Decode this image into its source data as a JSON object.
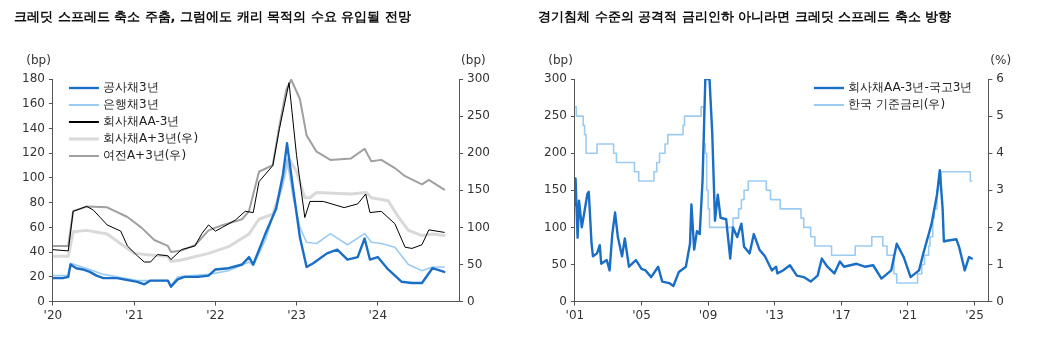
{
  "chart_data": [
    {
      "type": "line",
      "title": "크레딧 스프레드 축소 주춤, 그럼에도 캐리 목적의 수요 유입될 전망",
      "ylabel": "(bp)",
      "y2label": "(bp)",
      "legend": "top left",
      "marker": "none",
      "xlim": [
        "2020-01-01",
        "2025-01-01"
      ],
      "xticks": [
        {
          "value": "2020-01-01",
          "label": "'20"
        },
        {
          "value": "2021-01-01",
          "label": "'21"
        },
        {
          "value": "2022-01-01",
          "label": "'22"
        },
        {
          "value": "2023-01-01",
          "label": "'23"
        },
        {
          "value": "2024-01-01",
          "label": "'24"
        }
      ],
      "ylim": [
        0,
        180
      ],
      "yticks": [
        0,
        20,
        40,
        60,
        80,
        100,
        120,
        140,
        160,
        180
      ],
      "y2lim": [
        0,
        300
      ],
      "y2ticks": [
        0,
        50,
        100,
        150,
        200,
        250,
        300
      ],
      "series": [
        {
          "name": "회사채A+3년(우)",
          "color": "#d9d9d9",
          "axis": "y2",
          "x": [
            "2020-01-01",
            "2020-03-10",
            "2020-04-01",
            "2020-06-01",
            "2020-09-01",
            "2020-11-01",
            "2021-01-01",
            "2021-03-01",
            "2021-06-01",
            "2021-06-15",
            "2021-08-01",
            "2021-12-01",
            "2022-03-01",
            "2022-06-01",
            "2022-07-16",
            "2022-09-16",
            "2022-10-16",
            "2022-11-28",
            "2023-01-01",
            "2023-02-07",
            "2023-03-02",
            "2023-04-01",
            "2023-09-03",
            "2023-11-11",
            "2023-12-03",
            "2024-02-17",
            "2024-04-03",
            "2024-05-18",
            "2024-07-18",
            "2024-09-03",
            "2024-10-26"
          ],
          "values": [
            61,
            61,
            94,
            96,
            91,
            78,
            65,
            63,
            61,
            54,
            56,
            65,
            74,
            91,
            111,
            118,
            144,
            193,
            175,
            140,
            140,
            147,
            145,
            147,
            140,
            136,
            114,
            96,
            89,
            91,
            89
          ]
        },
        {
          "name": "여전A+3년(우)",
          "color": "#a0a0a0",
          "axis": "y2",
          "x": [
            "2020-01-01",
            "2020-03-10",
            "2020-04-01",
            "2020-06-01",
            "2020-09-01",
            "2020-12-01",
            "2021-02-01",
            "2021-04-01",
            "2021-06-01",
            "2021-06-15",
            "2021-08-01",
            "2021-10-01",
            "2021-12-01",
            "2022-02-01",
            "2022-05-01",
            "2022-06-01",
            "2022-07-16",
            "2022-09-16",
            "2022-10-16",
            "2022-11-16",
            "2022-12-08",
            "2023-01-16",
            "2023-02-15",
            "2023-04-01",
            "2023-06-02",
            "2023-09-03",
            "2023-11-03",
            "2023-12-03",
            "2024-01-17",
            "2024-03-18",
            "2024-05-03",
            "2024-07-18",
            "2024-08-18",
            "2024-10-26"
          ],
          "values": [
            75,
            75,
            122,
            128,
            127,
            114,
            100,
            83,
            75,
            67,
            69,
            76,
            96,
            103,
            111,
            122,
            175,
            184,
            237,
            286,
            299,
            273,
            224,
            202,
            191,
            193,
            206,
            189,
            191,
            180,
            169,
            158,
            164,
            151
          ]
        },
        {
          "name": "회사채AA-3년",
          "color": "#000000",
          "x": [
            "2020-01-01",
            "2020-03-10",
            "2020-04-01",
            "2020-06-01",
            "2020-07-01",
            "2020-08-01",
            "2020-09-01",
            "2020-11-01",
            "2020-12-01",
            "2021-01-15",
            "2021-02-15",
            "2021-03-15",
            "2021-04-15",
            "2021-06-01",
            "2021-06-15",
            "2021-08-01",
            "2021-10-01",
            "2021-11-01",
            "2021-12-01",
            "2022-01-01",
            "2022-02-01",
            "2022-04-01",
            "2022-05-15",
            "2022-06-20",
            "2022-07-16",
            "2022-09-16",
            "2022-10-16",
            "2022-11-28",
            "2023-01-01",
            "2023-02-07",
            "2023-03-02",
            "2023-05-01",
            "2023-08-03",
            "2023-10-03",
            "2023-11-08",
            "2023-11-27",
            "2024-01-17",
            "2024-03-18",
            "2024-05-03",
            "2024-06-03",
            "2024-07-18",
            "2024-08-18",
            "2024-10-26"
          ],
          "values": [
            42,
            41,
            73,
            77,
            74,
            68,
            62,
            57,
            45,
            37,
            32,
            32,
            38,
            37,
            34,
            42,
            45,
            55,
            62,
            57,
            60,
            66,
            73,
            72,
            97,
            110,
            140,
            177,
            118,
            68,
            81,
            81,
            76,
            79,
            87,
            72,
            73,
            63,
            44,
            43,
            46,
            58,
            56
          ]
        },
        {
          "name": "은행채3년",
          "color": "#9ccbf2",
          "x": [
            "2020-01-01",
            "2020-03-10",
            "2020-03-20",
            "2020-06-15",
            "2020-08-15",
            "2021-01-15",
            "2021-06-01",
            "2021-06-15",
            "2021-07-15",
            "2021-12-01",
            "2022-03-01",
            "2022-06-01",
            "2022-06-20",
            "2022-08-14",
            "2022-11-01",
            "2022-11-19",
            "2022-12-16",
            "2023-01-16",
            "2023-02-15",
            "2023-04-01",
            "2023-06-02",
            "2023-08-18",
            "2023-11-03",
            "2023-12-03",
            "2024-01-17",
            "2024-03-18",
            "2024-05-18",
            "2024-07-18",
            "2024-09-03",
            "2024-10-26"
          ],
          "values": [
            21,
            21,
            31,
            26,
            22,
            17,
            17,
            13,
            20,
            22,
            25,
            32,
            29,
            50,
            95,
            115,
            85,
            60,
            48,
            47,
            55,
            46,
            55,
            48,
            47,
            44,
            30,
            25,
            28,
            28
          ]
        },
        {
          "name": "공사채3년",
          "color": "#1a6ec6",
          "x": [
            "2020-01-01",
            "2020-02-15",
            "2020-03-10",
            "2020-03-20",
            "2020-04-15",
            "2020-05-15",
            "2020-06-15",
            "2020-07-15",
            "2020-08-15",
            "2020-10-15",
            "2020-12-15",
            "2021-01-15",
            "2021-02-15",
            "2021-03-15",
            "2021-06-01",
            "2021-06-15",
            "2021-07-15",
            "2021-08-15",
            "2021-10-15",
            "2021-12-01",
            "2022-01-01",
            "2022-03-01",
            "2022-05-01",
            "2022-06-01",
            "2022-06-20",
            "2022-08-14",
            "2022-10-01",
            "2022-11-01",
            "2022-11-19",
            "2022-12-16",
            "2023-01-16",
            "2023-02-15",
            "2023-03-17",
            "2023-05-18",
            "2023-07-03",
            "2023-08-18",
            "2023-10-03",
            "2023-11-03",
            "2023-11-27",
            "2024-01-01",
            "2024-02-17",
            "2024-04-18",
            "2024-06-03",
            "2024-07-18",
            "2024-09-03",
            "2024-10-26"
          ],
          "values": [
            19,
            19,
            20,
            30,
            27,
            26,
            24,
            21,
            19,
            19,
            17,
            16,
            14,
            17,
            17,
            12,
            18,
            20,
            20,
            21,
            26,
            27,
            30,
            36,
            30,
            55,
            75,
            103,
            128,
            92,
            52,
            28,
            31,
            39,
            42,
            34,
            36,
            51,
            34,
            36,
            26,
            16,
            15,
            15,
            27,
            24
          ]
        }
      ]
    },
    {
      "type": "line",
      "title": "경기침체 수준의 공격적 금리인하 아니라면 크레딧 스프레드 축소 방향",
      "ylabel": "(bp)",
      "y2label": "(%)",
      "legend": "top right",
      "marker": "none",
      "xlim": [
        "2001-01-01",
        "2025-11-01"
      ],
      "xticks": [
        {
          "value": "2001-01-01",
          "label": "'01"
        },
        {
          "value": "2005-01-01",
          "label": "'05"
        },
        {
          "value": "2009-01-01",
          "label": "'09"
        },
        {
          "value": "2013-01-01",
          "label": "'13"
        },
        {
          "value": "2017-01-01",
          "label": "'17"
        },
        {
          "value": "2021-01-01",
          "label": "'21"
        },
        {
          "value": "2025-01-01",
          "label": "'25"
        }
      ],
      "ylim": [
        0,
        300
      ],
      "yticks": [
        0,
        50,
        100,
        150,
        200,
        250,
        300
      ],
      "y2lim": [
        0,
        6
      ],
      "y2ticks": [
        0,
        1,
        2,
        3,
        4,
        5,
        6
      ],
      "series": [
        {
          "name": "한국 기준금리(우)",
          "color": "#9ccbf2",
          "type": "step",
          "axis": "y2",
          "x": [
            "2001-01",
            "2001-02",
            "2001-07",
            "2001-08",
            "2001-09",
            "2002-05",
            "2003-05",
            "2003-07",
            "2004-08",
            "2004-11",
            "2005-10",
            "2005-12",
            "2006-02",
            "2006-06",
            "2006-08",
            "2007-07",
            "2007-08",
            "2008-08",
            "2008-10",
            "2008-11",
            "2008-12",
            "2009-01",
            "2009-02",
            "2010-07",
            "2010-11",
            "2011-01",
            "2011-03",
            "2011-06",
            "2012-07",
            "2012-10",
            "2013-05",
            "2014-08",
            "2014-10",
            "2015-03",
            "2015-06",
            "2016-06",
            "2017-11",
            "2018-11",
            "2019-07",
            "2019-10",
            "2020-03",
            "2020-05",
            "2021-08",
            "2021-11",
            "2022-01",
            "2022-04",
            "2022-05",
            "2022-07",
            "2022-08",
            "2022-10",
            "2022-11",
            "2023-01",
            "2024-10",
            "2024-11"
          ],
          "values": [
            5.25,
            5.0,
            4.75,
            4.5,
            4.0,
            4.25,
            4.0,
            3.75,
            3.5,
            3.25,
            3.5,
            3.75,
            4.0,
            4.25,
            4.5,
            4.75,
            5.0,
            5.25,
            4.25,
            4.0,
            3.0,
            2.5,
            2.0,
            2.25,
            2.5,
            2.75,
            3.0,
            3.25,
            3.0,
            2.75,
            2.5,
            2.25,
            2.0,
            1.75,
            1.5,
            1.25,
            1.5,
            1.75,
            1.5,
            1.25,
            0.75,
            0.5,
            0.75,
            1.0,
            1.25,
            1.5,
            1.75,
            2.25,
            2.5,
            3.0,
            3.25,
            3.5,
            3.25,
            3.25
          ]
        },
        {
          "name": "회사채AA-3년-국고3년",
          "color": "#1a6ec6",
          "type": "line",
          "x": [
            "2001-01-01",
            "2001-01-15",
            "2001-03",
            "2001-04",
            "2001-06",
            "2001-08",
            "2001-10",
            "2001-11",
            "2002-01",
            "2002-02",
            "2002-05",
            "2002-07",
            "2002-08",
            "2002-12",
            "2003-02",
            "2003-04",
            "2003-06",
            "2003-08",
            "2003-11",
            "2004-01",
            "2004-04",
            "2004-09",
            "2005-01",
            "2005-04",
            "2005-08",
            "2006-01",
            "2006-04",
            "2006-09",
            "2006-12",
            "2007-04",
            "2007-09",
            "2007-12",
            "2008-01",
            "2008-03",
            "2008-05",
            "2008-07",
            "2008-09",
            "2008-11",
            "2009-02",
            "2009-04",
            "2009-06",
            "2009-08",
            "2009-10",
            "2010-02",
            "2010-05",
            "2010-07",
            "2010-10",
            "2011-01",
            "2011-03",
            "2011-07",
            "2011-10",
            "2012-02",
            "2012-06",
            "2012-11",
            "2013-02",
            "2013-03",
            "2013-07",
            "2013-12",
            "2014-05",
            "2014-10",
            "2015-03",
            "2015-08",
            "2015-11",
            "2016-03",
            "2016-08",
            "2016-12",
            "2017-03",
            "2017-12",
            "2018-06",
            "2018-12",
            "2019-06",
            "2020-01",
            "2020-05",
            "2020-10",
            "2021-03",
            "2021-09",
            "2021-12",
            "2022-06",
            "2022-10",
            "2022-12",
            "2023-02",
            "2023-03",
            "2023-05",
            "2023-12",
            "2024-02",
            "2024-06",
            "2024-09",
            "2024-11"
          ],
          "values": [
            130,
            166,
            86,
            136,
            100,
            122,
            145,
            148,
            78,
            61,
            65,
            76,
            51,
            56,
            42,
            91,
            120,
            87,
            61,
            85,
            47,
            56,
            44,
            42,
            33,
            47,
            27,
            25,
            21,
            40,
            47,
            78,
            131,
            70,
            95,
            91,
            163,
            300,
            300,
            228,
            109,
            144,
            113,
            111,
            58,
            100,
            87,
            105,
            74,
            65,
            91,
            70,
            61,
            42,
            47,
            38,
            42,
            49,
            35,
            33,
            27,
            35,
            58,
            47,
            38,
            54,
            47,
            51,
            47,
            49,
            31,
            42,
            78,
            60,
            33,
            42,
            64,
            104,
            144,
            177,
            126,
            81,
            82,
            84,
            73,
            42,
            60,
            58
          ]
        }
      ]
    }
  ]
}
